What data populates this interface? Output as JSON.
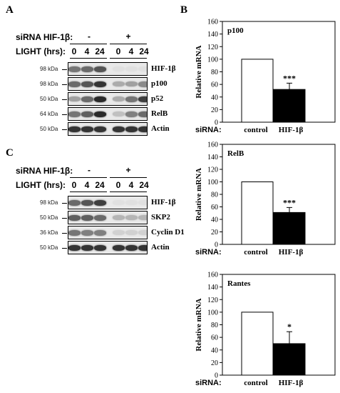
{
  "panel_a": {
    "letter": "A",
    "sirna_label": "siRNA HIF-1β:",
    "groups": [
      "-",
      "+"
    ],
    "light_label": "LIGHT (hrs):",
    "lanes": [
      "0",
      "4",
      "24",
      "0",
      "4",
      "24"
    ],
    "blots": [
      {
        "kda": "98 kDa",
        "label": "HIF-1β",
        "intensity": [
          0.55,
          0.6,
          0.7,
          0.05,
          0.05,
          0.05
        ]
      },
      {
        "kda": "98 kDa",
        "label": "p100",
        "intensity": [
          0.6,
          0.7,
          0.85,
          0.3,
          0.35,
          0.45
        ]
      },
      {
        "kda": "50 kDa",
        "label": "p52",
        "intensity": [
          0.35,
          0.6,
          0.9,
          0.3,
          0.55,
          0.8
        ]
      },
      {
        "kda": "64 kDa",
        "label": "RelB",
        "intensity": [
          0.55,
          0.65,
          0.9,
          0.2,
          0.5,
          0.6
        ]
      },
      {
        "kda": "50 kDa",
        "label": "Actin",
        "intensity": [
          0.85,
          0.85,
          0.85,
          0.85,
          0.85,
          0.85
        ]
      }
    ]
  },
  "panel_c": {
    "letter": "C",
    "sirna_label": "siRNA HIF-1β:",
    "groups": [
      "-",
      "+"
    ],
    "light_label": "LIGHT (hrs):",
    "lanes": [
      "0",
      "4",
      "24",
      "0",
      "4",
      "24"
    ],
    "blots": [
      {
        "kda": "98 kDa",
        "label": "HIF-1β",
        "intensity": [
          0.6,
          0.7,
          0.8,
          0.05,
          0.05,
          0.05
        ]
      },
      {
        "kda": "50 kDa",
        "label": "SKP2",
        "intensity": [
          0.65,
          0.65,
          0.6,
          0.25,
          0.25,
          0.25
        ]
      },
      {
        "kda": "36 kDa",
        "label": "Cyclin D1",
        "intensity": [
          0.55,
          0.5,
          0.5,
          0.12,
          0.12,
          0.12
        ]
      },
      {
        "kda": "50 kDa",
        "label": "Actin",
        "intensity": [
          0.85,
          0.85,
          0.85,
          0.85,
          0.85,
          0.85
        ]
      }
    ]
  },
  "panel_b": {
    "letter": "B",
    "sirna_label": "siRNA:"
  },
  "chart_data": [
    {
      "type": "bar",
      "title": "p100",
      "ylabel": "Relative mRNA",
      "ylim": [
        0,
        160
      ],
      "yticks": [
        0,
        20,
        40,
        60,
        80,
        100,
        120,
        140,
        160
      ],
      "categories": [
        "control",
        "HIF-1β"
      ],
      "values": [
        100,
        52
      ],
      "errors": [
        0,
        10
      ],
      "bar_colors": [
        "#ffffff",
        "#000000"
      ],
      "annotations": [
        "",
        "***"
      ],
      "grid": false
    },
    {
      "type": "bar",
      "title": "RelB",
      "ylabel": "Relative mRNA",
      "ylim": [
        0,
        160
      ],
      "yticks": [
        0,
        20,
        40,
        60,
        80,
        100,
        120,
        140,
        160
      ],
      "categories": [
        "control",
        "HIF-1β"
      ],
      "values": [
        100,
        51
      ],
      "errors": [
        0,
        8
      ],
      "bar_colors": [
        "#ffffff",
        "#000000"
      ],
      "annotations": [
        "",
        "***"
      ],
      "grid": false
    },
    {
      "type": "bar",
      "title": "Rantes",
      "ylabel": "Relative mRNA",
      "ylim": [
        0,
        160
      ],
      "yticks": [
        0,
        20,
        40,
        60,
        80,
        100,
        120,
        140,
        160
      ],
      "categories": [
        "control",
        "HIF-1β"
      ],
      "values": [
        100,
        50
      ],
      "errors": [
        0,
        19
      ],
      "bar_colors": [
        "#ffffff",
        "#000000"
      ],
      "annotations": [
        "",
        "*"
      ],
      "grid": false
    }
  ]
}
